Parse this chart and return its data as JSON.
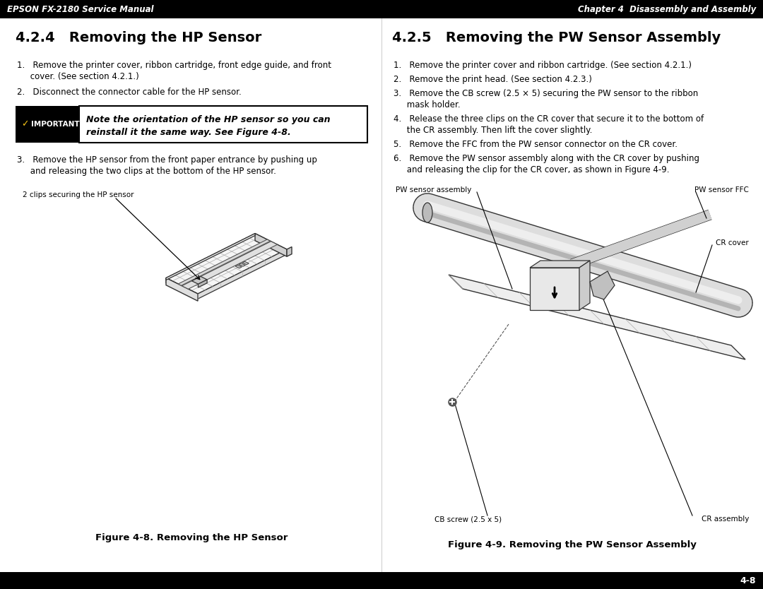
{
  "bg_color": "#ffffff",
  "header_bg": "#000000",
  "header_text_left": "EPSON FX-2180 Service Manual",
  "header_text_right": "Chapter 4  Disassembly and Assembly",
  "header_text_color": "#ffffff",
  "footer_bg": "#000000",
  "footer_text": "4-8",
  "footer_text_color": "#ffffff",
  "left_section_title": "4.2.4   Removing the HP Sensor",
  "left_item1_line1": "1.   Remove the printer cover, ribbon cartridge, front edge guide, and front",
  "left_item1_line2": "     cover. (See section 4.2.1.)",
  "left_item2": "2.   Disconnect the connector cable for the HP sensor.",
  "important_label": "✓ IMPORTANT",
  "important_text_line1": "Note the orientation of the HP sensor so you can",
  "important_text_line2": "reinstall it the same way. See Figure 4-8.",
  "left_item3_line1": "3.   Remove the HP sensor from the front paper entrance by pushing up",
  "left_item3_line2": "     and releasing the two clips at the bottom of the HP sensor.",
  "left_figure_label": "2 clips securing the HP sensor",
  "left_figure_caption": "Figure 4-8. Removing the HP Sensor",
  "right_section_title": "4.2.5   Removing the PW Sensor Assembly",
  "right_item1": "1.   Remove the printer cover and ribbon cartridge. (See section 4.2.1.)",
  "right_item2": "2.   Remove the print head. (See section 4.2.3.)",
  "right_item3_line1": "3.   Remove the CB screw (2.5 × 5) securing the PW sensor to the ribbon",
  "right_item3_line2": "     mask holder.",
  "right_item4_line1": "4.   Release the three clips on the CR cover that secure it to the bottom of",
  "right_item4_line2": "     the CR assembly. Then lift the cover slightly.",
  "right_item5": "5.   Remove the FFC from the PW sensor connector on the CR cover.",
  "right_item6_line1": "6.   Remove the PW sensor assembly along with the CR cover by pushing",
  "right_item6_line2": "     and releasing the clip for the CR cover, as shown in Figure 4-9.",
  "right_label_pw_assembly": "PW sensor assembly",
  "right_label_pw_ffc": "PW sensor FFC",
  "right_label_cr_cover": "CR cover",
  "right_label_cb_screw": "CB screw (2.5 x 5)",
  "right_label_cr_assembly": "CR assembly",
  "right_figure_caption": "Figure 4-9. Removing the PW Sensor Assembly"
}
